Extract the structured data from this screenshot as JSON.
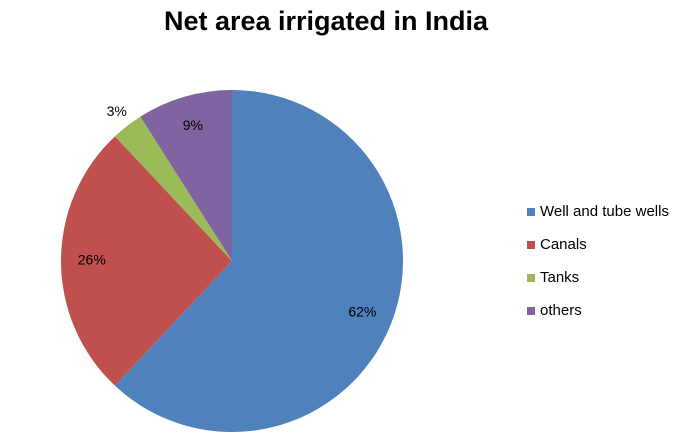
{
  "chart_data": {
    "type": "pie",
    "title": "Net area irrigated in India",
    "categories": [
      "Well and tube wells",
      "Canals",
      "Tanks",
      "others"
    ],
    "values": [
      62,
      26,
      3,
      9
    ],
    "value_labels": [
      "62%",
      "26%",
      "3%",
      "9%"
    ],
    "colors": [
      "#4f81bd",
      "#c0504d",
      "#9bbb59",
      "#8064a2"
    ],
    "legend": "right"
  }
}
